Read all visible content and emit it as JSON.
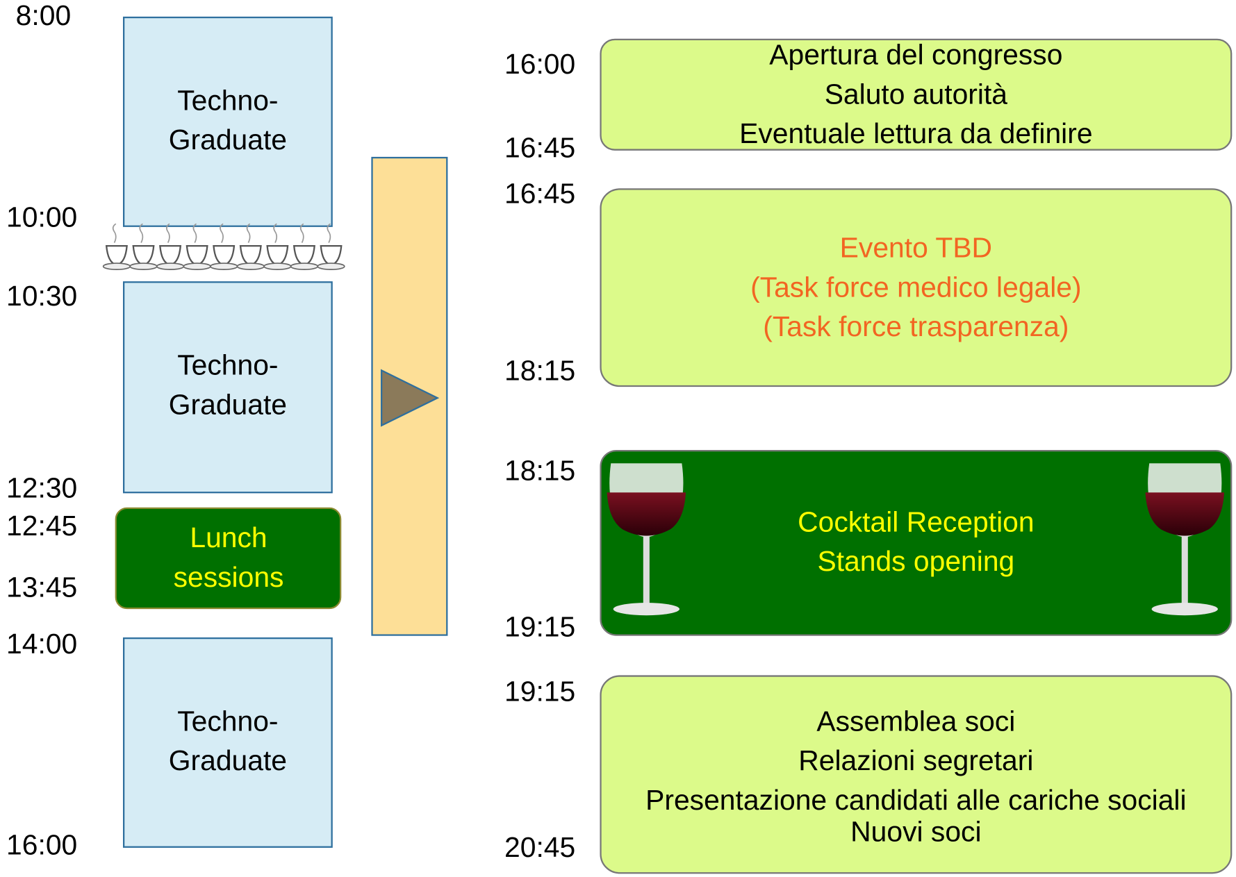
{
  "left_times": [
    "8:00",
    "10:00",
    "10:30",
    "12:30",
    "12:45",
    "13:45",
    "14:00",
    "16:00"
  ],
  "left_blocks": [
    {
      "lines": [
        "Techno-",
        "Graduate"
      ]
    },
    {
      "lines": [
        "Techno-",
        "Graduate"
      ]
    },
    {
      "lines": [
        "Techno-",
        "Graduate"
      ]
    }
  ],
  "lunch": {
    "lines": [
      "Lunch",
      "sessions"
    ]
  },
  "sessions": [
    {
      "start": "16:00",
      "end": "16:45",
      "lines": [
        "Apertura del congresso",
        "Saluto autorità",
        "Eventuale lettura da definire"
      ]
    },
    {
      "start": "16:45",
      "end": "18:15",
      "lines": [
        "Evento TBD",
        "(Task force medico legale)",
        "(Task force trasparenza)"
      ]
    },
    {
      "start": "18:15",
      "end": "19:15",
      "lines": [
        "Cocktail Reception",
        "Stands opening"
      ]
    },
    {
      "start": "19:15",
      "end": "20:45",
      "lines": [
        "Assemblea soci",
        "Relazioni segretari",
        "Presentazione candidati alle cariche sociali",
        "Nuovi soci"
      ]
    }
  ]
}
